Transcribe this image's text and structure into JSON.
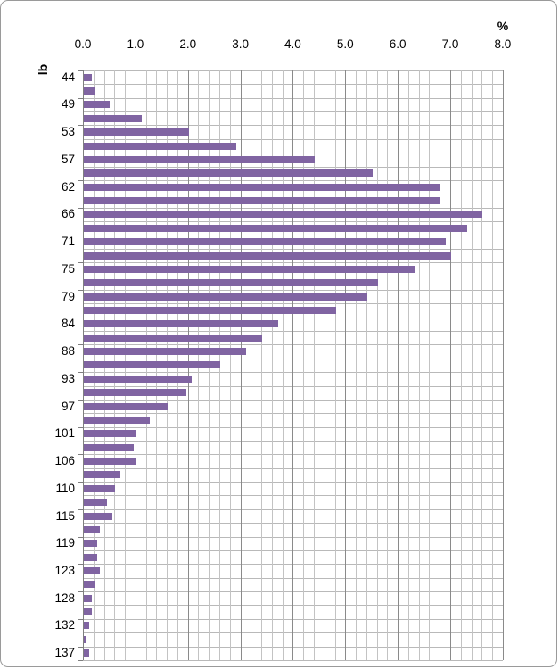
{
  "chart_data": {
    "type": "bar",
    "orientation": "horizontal",
    "xlabel": "%",
    "ylabel": "lb",
    "xlim": [
      0.0,
      8.0
    ],
    "x_major_unit": 1.0,
    "x_minor_unit": 0.2,
    "x_tick_labels": [
      "0.0",
      "1.0",
      "2.0",
      "3.0",
      "4.0",
      "5.0",
      "6.0",
      "7.0",
      "8.0"
    ],
    "y_tick_labels": [
      "44",
      "49",
      "53",
      "57",
      "62",
      "66",
      "71",
      "75",
      "79",
      "84",
      "88",
      "93",
      "97",
      "101",
      "106",
      "110",
      "115",
      "119",
      "123",
      "128",
      "132",
      "137"
    ],
    "legend": "none",
    "grid": "major-and-minor-vertical, category-horizontal",
    "bar_color": "#8064a2",
    "minor_gridline_color": "#c3c3c3",
    "major_gridline_color": "#8a8a8a",
    "category_gridline_color": "#b9b9b9",
    "rows": [
      {
        "label": "44",
        "value": 0.15
      },
      {
        "label": "",
        "value": 0.2
      },
      {
        "label": "49",
        "value": 0.5
      },
      {
        "label": "",
        "value": 1.1
      },
      {
        "label": "53",
        "value": 2.0
      },
      {
        "label": "",
        "value": 2.9
      },
      {
        "label": "57",
        "value": 4.4
      },
      {
        "label": "",
        "value": 5.5
      },
      {
        "label": "62",
        "value": 6.8
      },
      {
        "label": "",
        "value": 6.8
      },
      {
        "label": "66",
        "value": 7.6
      },
      {
        "label": "",
        "value": 7.3
      },
      {
        "label": "71",
        "value": 6.9
      },
      {
        "label": "",
        "value": 7.0
      },
      {
        "label": "75",
        "value": 6.3
      },
      {
        "label": "",
        "value": 5.6
      },
      {
        "label": "79",
        "value": 5.4
      },
      {
        "label": "",
        "value": 4.8
      },
      {
        "label": "84",
        "value": 3.7
      },
      {
        "label": "",
        "value": 3.4
      },
      {
        "label": "88",
        "value": 3.1
      },
      {
        "label": "",
        "value": 2.6
      },
      {
        "label": "93",
        "value": 2.05
      },
      {
        "label": "",
        "value": 1.95
      },
      {
        "label": "97",
        "value": 1.6
      },
      {
        "label": "",
        "value": 1.25
      },
      {
        "label": "101",
        "value": 1.0
      },
      {
        "label": "",
        "value": 0.95
      },
      {
        "label": "106",
        "value": 1.0
      },
      {
        "label": "",
        "value": 0.7
      },
      {
        "label": "110",
        "value": 0.6
      },
      {
        "label": "",
        "value": 0.45
      },
      {
        "label": "115",
        "value": 0.55
      },
      {
        "label": "",
        "value": 0.3
      },
      {
        "label": "119",
        "value": 0.25
      },
      {
        "label": "",
        "value": 0.25
      },
      {
        "label": "123",
        "value": 0.3
      },
      {
        "label": "",
        "value": 0.2
      },
      {
        "label": "128",
        "value": 0.15
      },
      {
        "label": "",
        "value": 0.15
      },
      {
        "label": "132",
        "value": 0.1
      },
      {
        "label": "",
        "value": 0.05
      },
      {
        "label": "137",
        "value": 0.1
      }
    ]
  }
}
